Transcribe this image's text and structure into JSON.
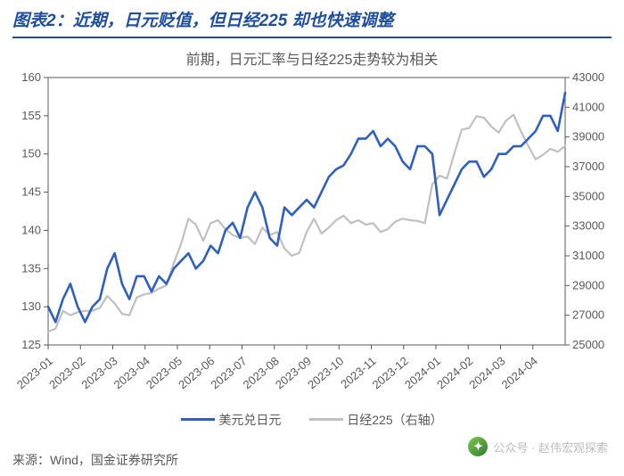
{
  "title": "图表2：近期，日元贬值，但日经225 却也快速调整",
  "subtitle": "前期，日元汇率与日经225走势较为相关",
  "source_label": "来源：Wind，国金证券研究所",
  "watermark": {
    "prefix": "公众号 · ",
    "name": "赵伟宏观探索"
  },
  "legend": {
    "series1": "美元兑日元",
    "series2": "日经225（右轴）"
  },
  "chart": {
    "type": "dual-axis-line",
    "background_color": "#ffffff",
    "border_color": "#595959",
    "left_axis": {
      "min": 125,
      "max": 160,
      "step": 5,
      "ticks": [
        125,
        130,
        135,
        140,
        145,
        150,
        155,
        160
      ],
      "color": "#595959",
      "fontsize": 13
    },
    "right_axis": {
      "min": 25000,
      "max": 43000,
      "step": 2000,
      "ticks": [
        25000,
        27000,
        29000,
        31000,
        33000,
        35000,
        37000,
        39000,
        41000,
        43000
      ],
      "color": "#595959",
      "fontsize": 13
    },
    "x_axis": {
      "labels": [
        "2023-01",
        "2023-02",
        "2023-03",
        "2023-04",
        "2023-05",
        "2023-06",
        "2023-07",
        "2023-08",
        "2023-09",
        "2023-10",
        "2023-11",
        "2023-12",
        "2024-01",
        "2024-02",
        "2024-03",
        "2024-04"
      ],
      "rotation": -40,
      "color": "#595959",
      "fontsize": 13
    },
    "series": [
      {
        "name": "美元兑日元",
        "color": "#2f5fbf",
        "width": 2.6,
        "axis": "left",
        "y": [
          130,
          128,
          131,
          133,
          130,
          128,
          130,
          131,
          135,
          137,
          133,
          131,
          134,
          134,
          132,
          134,
          133,
          135,
          136,
          137,
          135,
          136,
          138,
          137,
          140,
          141,
          139,
          143,
          145,
          143,
          139,
          138,
          143,
          142,
          143,
          144,
          143,
          145,
          147,
          148,
          148.5,
          150,
          152,
          152,
          153,
          151,
          152,
          151,
          149,
          148,
          151,
          151,
          150,
          142,
          144,
          146,
          148,
          149,
          149,
          147,
          148,
          150,
          150,
          151,
          151,
          152,
          153,
          155,
          155,
          153,
          158
        ]
      },
      {
        "name": "日经225",
        "color": "#c0c0c0",
        "width": 2.2,
        "axis": "right",
        "y": [
          25900,
          26100,
          27300,
          27000,
          27200,
          27300,
          27300,
          27500,
          28300,
          27800,
          27100,
          27000,
          28200,
          28400,
          28500,
          28800,
          29000,
          30500,
          31800,
          33500,
          33100,
          32000,
          33200,
          33400,
          32800,
          32400,
          32200,
          32300,
          31800,
          32900,
          32400,
          32600,
          31500,
          31000,
          31200,
          32600,
          33500,
          32500,
          32900,
          33400,
          33700,
          33200,
          33400,
          33100,
          33200,
          32600,
          32800,
          33300,
          33500,
          33400,
          33350,
          33200,
          35800,
          36400,
          36200,
          37900,
          39500,
          39600,
          40400,
          40300,
          39700,
          39300,
          40100,
          40500,
          39400,
          38400,
          37500,
          37800,
          38200,
          38000,
          38400
        ]
      }
    ]
  }
}
